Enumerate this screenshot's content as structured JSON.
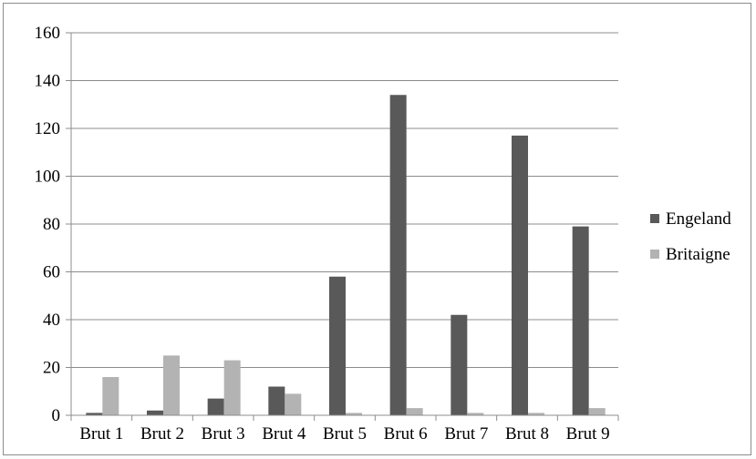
{
  "chart_data": {
    "type": "bar",
    "title": "",
    "xlabel": "",
    "ylabel": "",
    "categories": [
      "Brut 1",
      "Brut 2",
      "Brut 3",
      "Brut 4",
      "Brut 5",
      "Brut 6",
      "Brut 7",
      "Brut 8",
      "Brut 9"
    ],
    "series": [
      {
        "name": "Engeland",
        "values": [
          1,
          2,
          7,
          12,
          58,
          134,
          42,
          117,
          79
        ],
        "color": "#595959"
      },
      {
        "name": "Britaigne",
        "values": [
          16,
          25,
          23,
          9,
          1,
          3,
          1,
          1,
          3
        ],
        "color": "#b3b3b3"
      }
    ],
    "ylim": [
      0,
      160
    ],
    "yticks": [
      0,
      20,
      40,
      60,
      80,
      100,
      120,
      140,
      160
    ],
    "grid": true,
    "legend_position": "right"
  }
}
